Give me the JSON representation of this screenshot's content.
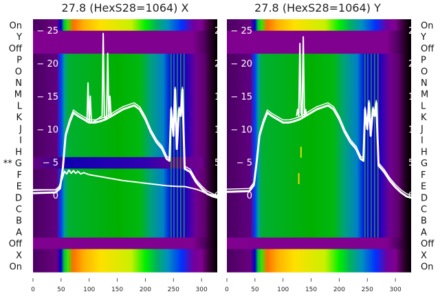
{
  "chart_data": [
    {
      "type": "heatmap",
      "title": "27.8 (HexS28=1064) X",
      "xlim": [
        0,
        328
      ],
      "xticks": [
        0,
        50,
        100,
        150,
        200,
        250,
        300
      ],
      "ylim": [
        -1.5,
        26.5
      ],
      "yticks": [
        0,
        5,
        10,
        15,
        20,
        25
      ],
      "row_labels": [
        "On",
        "Y",
        "Off",
        "P",
        "O",
        "N",
        "M",
        "L",
        "K",
        "J",
        "I",
        "H",
        "** G",
        "F",
        "E",
        "D",
        "C",
        "B",
        "A",
        "Off",
        "X",
        "On"
      ],
      "row_profiles": [
        "on",
        "off",
        "off",
        "letter",
        "letter",
        "letter",
        "letter",
        "letter",
        "letter",
        "letter",
        "letter",
        "letter",
        "dark",
        "letter",
        "letter",
        "letter",
        "letter",
        "letter",
        "letter",
        "off",
        "on",
        "on"
      ],
      "series": [
        {
          "name": "main",
          "x": [
            0,
            40,
            48,
            53,
            58,
            65,
            72,
            80,
            90,
            100,
            110,
            120,
            130,
            140,
            150,
            160,
            170,
            180,
            190,
            200,
            210,
            220,
            230,
            238,
            243,
            246,
            250,
            253,
            256,
            260,
            263,
            266,
            270,
            280,
            290,
            300,
            310,
            320,
            328
          ],
          "y": [
            0.3,
            0.4,
            1,
            4,
            9,
            11,
            12.5,
            12,
            11.5,
            11,
            11,
            11.2,
            11.5,
            12,
            12.5,
            13,
            13.3,
            13.6,
            13,
            11.5,
            9.5,
            8,
            7,
            5.5,
            5.2,
            13,
            9,
            16,
            7,
            13,
            12,
            16,
            4,
            3.5,
            2,
            1,
            0.2,
            -0.2,
            -0.4
          ]
        },
        {
          "name": "spikes",
          "x": [
            96,
            98,
            100,
            102,
            104,
            106,
            123,
            125,
            127,
            129,
            131,
            133,
            135,
            137,
            139
          ],
          "y": [
            11,
            17,
            11,
            15,
            11,
            11,
            12,
            24.5,
            12,
            11.5,
            11.6,
            21.5,
            12,
            15,
            12
          ]
        },
        {
          "name": "lower",
          "x": [
            0,
            40,
            46,
            52,
            56,
            60,
            64,
            68,
            72,
            76,
            80,
            85,
            90,
            100,
            120,
            140,
            160,
            180,
            200,
            220,
            240,
            260,
            270,
            280,
            290,
            300,
            310,
            320,
            328
          ],
          "y": [
            0.8,
            0.8,
            1.2,
            2.5,
            3.6,
            3.2,
            3.8,
            3.3,
            3.7,
            3.3,
            3.6,
            3.2,
            3.4,
            3.1,
            2.8,
            2.5,
            2.2,
            2,
            1.8,
            1.6,
            1.4,
            1.3,
            1.3,
            1.1,
            0.9,
            0.6,
            0.2,
            0,
            -0.2
          ]
        }
      ],
      "markers": []
    },
    {
      "type": "heatmap",
      "title": "27.8 (HexS28=1064) Y",
      "xlim": [
        0,
        328
      ],
      "xticks": [
        0,
        50,
        100,
        150,
        200,
        250,
        300
      ],
      "ylim": [
        -1.5,
        26.5
      ],
      "yticks": [
        0,
        5,
        10,
        15,
        20,
        25
      ],
      "row_labels": [
        "On",
        "Y",
        "Off",
        "P",
        "O",
        "N",
        "M",
        "L",
        "K",
        "J",
        "I",
        "H",
        "G",
        "F",
        "E",
        "D",
        "C",
        "B",
        "A",
        "Off",
        "X",
        "On"
      ],
      "row_profiles": [
        "on",
        "off",
        "off",
        "letter",
        "letter",
        "letter",
        "letter",
        "letter",
        "letter",
        "letter",
        "letter",
        "letter",
        "letter",
        "letter",
        "letter",
        "letter",
        "letter",
        "letter",
        "letter",
        "off",
        "on",
        "on"
      ],
      "series": [
        {
          "name": "main",
          "x": [
            0,
            40,
            48,
            53,
            58,
            65,
            72,
            80,
            90,
            100,
            110,
            120,
            130,
            140,
            150,
            160,
            170,
            180,
            190,
            200,
            210,
            220,
            230,
            238,
            243,
            246,
            250,
            253,
            256,
            260,
            263,
            266,
            270,
            280,
            290,
            300,
            310,
            320,
            328
          ],
          "y": [
            0.5,
            0.6,
            1.5,
            5,
            9,
            11,
            12.5,
            12,
            11.5,
            11,
            11,
            11.2,
            11.5,
            12,
            12.5,
            13,
            13.3,
            13.6,
            13,
            11.5,
            9.5,
            8,
            7,
            5.5,
            5.2,
            13,
            10,
            14,
            9,
            13,
            12,
            14,
            4.5,
            3.5,
            2.2,
            1.2,
            0.4,
            -0.2,
            -0.4
          ]
        },
        {
          "name": "spikes",
          "x": [
            124,
            126,
            128,
            130,
            132,
            134,
            136,
            138,
            140,
            142
          ],
          "y": [
            12,
            13,
            12,
            23,
            12.5,
            12,
            24,
            12,
            13,
            12
          ]
        }
      ],
      "markers": [
        {
          "x": 128,
          "y": 2.5,
          "color": "#ffd000"
        },
        {
          "x": 132,
          "y": 6.5,
          "color": "#e0e000"
        }
      ]
    }
  ],
  "colors": {
    "on": [
      [
        0,
        "#4a0060"
      ],
      [
        42,
        "#6a0080"
      ],
      [
        50,
        "#0000d0"
      ],
      [
        55,
        "#00c040"
      ],
      [
        62,
        "#40e000"
      ],
      [
        72,
        "#ff7000"
      ],
      [
        90,
        "#ffb000"
      ],
      [
        120,
        "#ffe000"
      ],
      [
        175,
        "#c8f000"
      ],
      [
        200,
        "#00f000"
      ],
      [
        220,
        "#00b060"
      ],
      [
        240,
        "#0090c0"
      ],
      [
        265,
        "#0030ff"
      ],
      [
        285,
        "#7000a0"
      ],
      [
        300,
        "#800090"
      ],
      [
        315,
        "#300030"
      ],
      [
        328,
        "#000000"
      ]
    ],
    "off": [
      [
        0,
        "#800090"
      ],
      [
        285,
        "#800090"
      ],
      [
        305,
        "#500060"
      ],
      [
        318,
        "#200020"
      ],
      [
        328,
        "#000000"
      ]
    ],
    "letter": [
      [
        0,
        "#4a0060"
      ],
      [
        42,
        "#600080"
      ],
      [
        50,
        "#0040ff"
      ],
      [
        56,
        "#00a090"
      ],
      [
        64,
        "#00b030"
      ],
      [
        150,
        "#00b000"
      ],
      [
        190,
        "#00b810"
      ],
      [
        210,
        "#00a080"
      ],
      [
        232,
        "#0080c8"
      ],
      [
        247,
        "#0000e0"
      ],
      [
        272,
        "#2000c0"
      ],
      [
        290,
        "#700090"
      ],
      [
        305,
        "#600070"
      ],
      [
        318,
        "#200020"
      ],
      [
        328,
        "#000000"
      ]
    ],
    "dark": [
      [
        0,
        "#600080"
      ],
      [
        50,
        "#400090"
      ],
      [
        60,
        "#1000b0"
      ],
      [
        200,
        "#3000b0"
      ],
      [
        260,
        "#600090"
      ],
      [
        300,
        "#700090"
      ],
      [
        318,
        "#200020"
      ],
      [
        328,
        "#000000"
      ]
    ],
    "line": "#ffffff"
  }
}
